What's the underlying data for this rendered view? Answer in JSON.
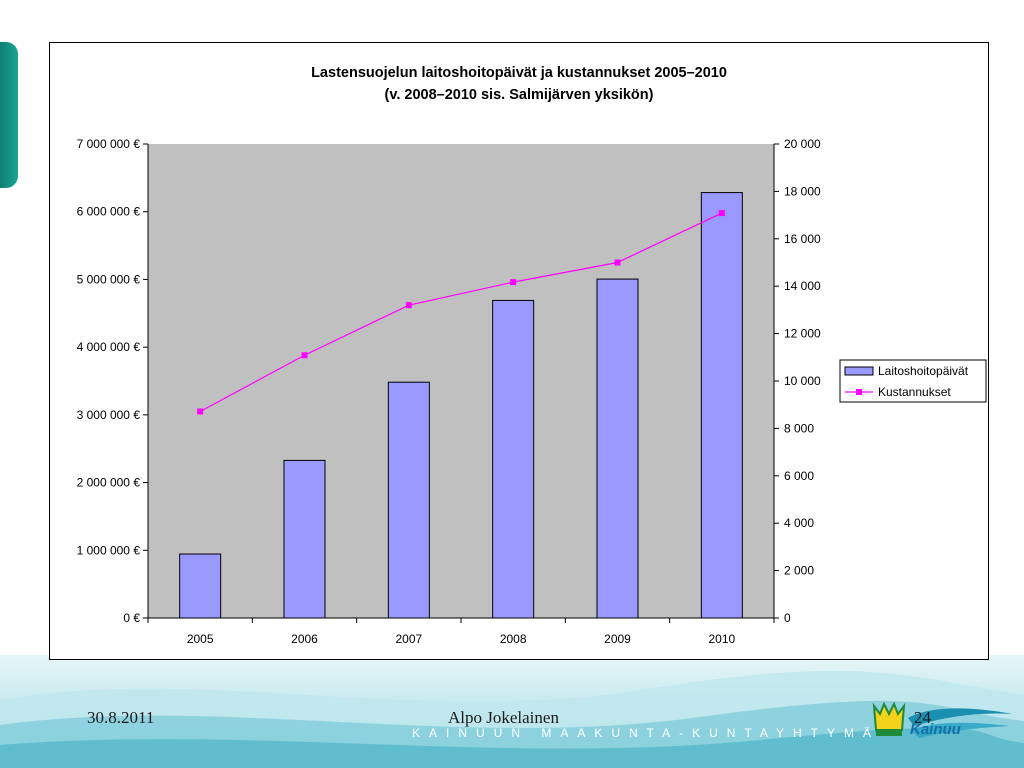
{
  "footer": {
    "date": "30.8.2011",
    "author": "Alpo Jokelainen",
    "page": "24",
    "organization": "KAINUUN MAAKUNTA-KUNTAYHTYMÄ",
    "logo_text": "Kainuu"
  },
  "colors": {
    "bar_fill": "#9999ff",
    "line": "#ff00ff",
    "plot_bg": "#c0c0c0",
    "accent_teal": "#1aa593"
  },
  "chart_data": {
    "type": "bar",
    "title": "Lastensuojelun laitoshoitopäivät ja kustannukset 2005–2010",
    "subtitle": "(v. 2008–2010 sis. Salmijärven yksikön)",
    "categories": [
      "2005",
      "2006",
      "2007",
      "2008",
      "2009",
      "2010"
    ],
    "series": [
      {
        "name": "Laitoshoitopäivät",
        "type": "bar",
        "axis": "right",
        "values": [
          2700,
          6650,
          9950,
          13400,
          14300,
          17950
        ]
      },
      {
        "name": "Kustannukset",
        "type": "line",
        "axis": "left",
        "values": [
          3050000,
          3880000,
          4620000,
          4960000,
          5250000,
          5980000
        ]
      }
    ],
    "y_left": {
      "min": 0,
      "max": 7000000,
      "step": 1000000,
      "ticks": [
        "0 €",
        "1 000 000 €",
        "2 000 000 €",
        "3 000 000 €",
        "4 000 000 €",
        "5 000 000 €",
        "6 000 000 €",
        "7 000 000 €"
      ]
    },
    "y_right": {
      "min": 0,
      "max": 20000,
      "step": 2000,
      "ticks": [
        "0",
        "2 000",
        "4 000",
        "6 000",
        "8 000",
        "10 000",
        "12 000",
        "14 000",
        "16 000",
        "18 000",
        "20 000"
      ]
    },
    "grid": false,
    "legend": "right"
  }
}
